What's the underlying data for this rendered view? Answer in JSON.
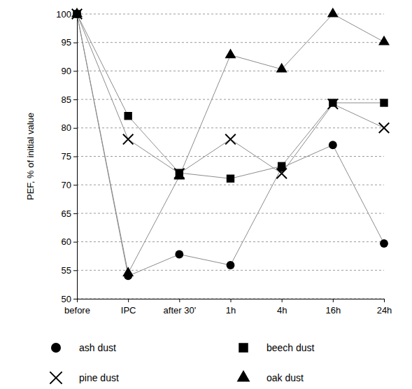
{
  "chart_data": {
    "type": "line",
    "y_label": "PEF, % of initial value",
    "categories": [
      "before",
      "IPC",
      "after 30'",
      "1h",
      "4h",
      "16h",
      "24h"
    ],
    "series": [
      {
        "name": "ash dust",
        "color": "#000000",
        "marker": "circle",
        "line_style": "solid",
        "values": [
          100,
          54,
          57.8,
          55.9,
          73,
          77,
          59.7
        ]
      },
      {
        "name": "beech dust",
        "color": "#000000",
        "marker": "square",
        "line_style": "solid",
        "values": [
          100,
          82.1,
          72.1,
          71.1,
          73.3,
          84.4,
          84.4
        ]
      },
      {
        "name": "pine dust",
        "color": "#000000",
        "marker": "x",
        "line_style": "solid",
        "values": [
          100,
          78,
          72,
          78,
          72,
          84.2,
          80
        ]
      },
      {
        "name": "oak dust",
        "color": "#000000",
        "marker": "triangle",
        "line_style": "solid",
        "values": [
          100,
          54.5,
          71.5,
          92.8,
          90.3,
          100,
          95.1
        ]
      }
    ],
    "ylim": [
      50,
      100
    ],
    "yticks": [
      50,
      55,
      60,
      65,
      70,
      75,
      80,
      85,
      90,
      95,
      100
    ],
    "grid": true,
    "legend": "bottom"
  }
}
